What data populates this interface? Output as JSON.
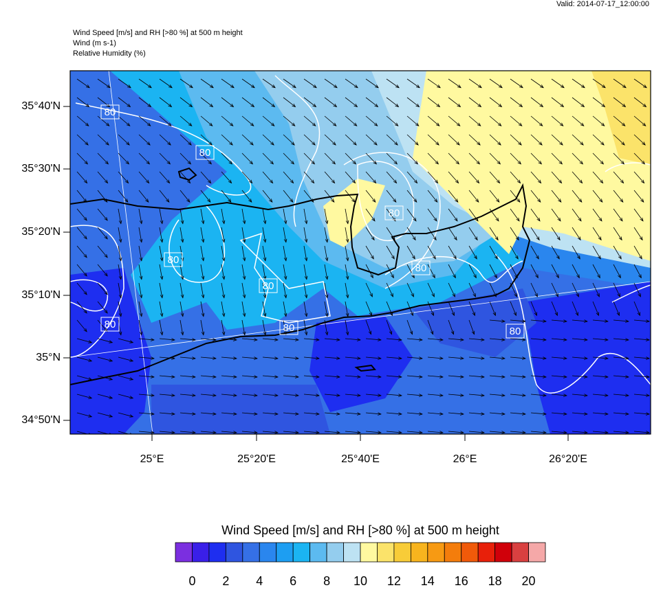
{
  "valid": "Valid: 2014-07-17_12:00:00",
  "header": {
    "lines": [
      "Wind Speed [m/s] and RH [>80 %] at 500 m height",
      "Wind   (m s-1)",
      "Relative Humidity   (%)"
    ]
  },
  "map": {
    "lat_labels": [
      "35°40'N",
      "35°30'N",
      "35°20'N",
      "35°10'N",
      "35°N",
      "34°50'N"
    ],
    "lon_labels": [
      "25°E",
      "25°20'E",
      "25°40'E",
      "26°E",
      "26°20'E"
    ],
    "contour_labels": [
      "80",
      "80",
      "80",
      "80",
      "80",
      "80",
      "80",
      "80",
      "80"
    ]
  },
  "colorbar": {
    "title": "Wind Speed [m/s] and RH [>80 %] at 500 m height",
    "colors": [
      "#7b2fe0",
      "#3a1fe8",
      "#1e2ef0",
      "#2f55e0",
      "#3570e6",
      "#2a86ee",
      "#1d9ef2",
      "#1bb4f2",
      "#5cbaf0",
      "#94cdee",
      "#bde2f3",
      "#fff9a0",
      "#fbe36a",
      "#f8cc38",
      "#f8b41e",
      "#f79a13",
      "#f47d0c",
      "#f05a0a",
      "#e8200a",
      "#d0000a",
      "#d94040",
      "#f5a8a8"
    ],
    "range": [
      -1,
      21
    ],
    "ticks": [
      0,
      2,
      4,
      6,
      8,
      10,
      12,
      14,
      16,
      18,
      20
    ]
  }
}
